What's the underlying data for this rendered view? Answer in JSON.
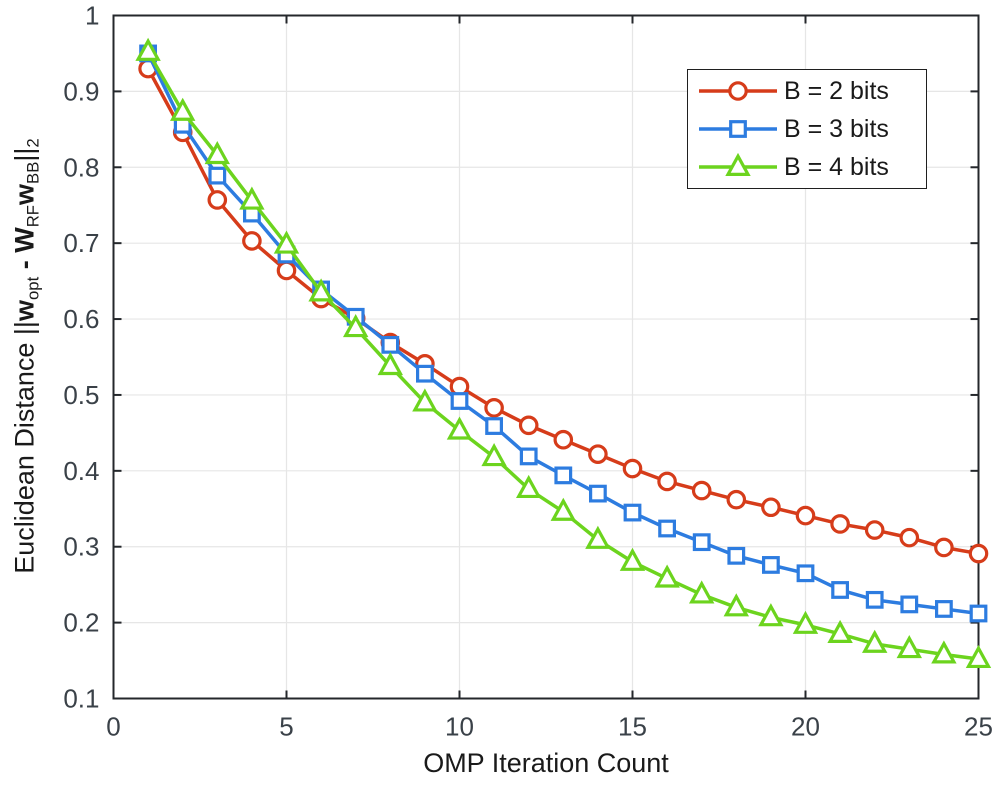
{
  "figure": {
    "background": "#ffffff",
    "axes_color": "#24272b",
    "grid_color": "#e6e6e6",
    "tick_label_color": "#3a4148",
    "label_color": "#1a1a1a"
  },
  "chart_data": {
    "type": "line",
    "title": "",
    "xlabel": "OMP Iteration Count",
    "ylabel": "Euclidean Distance ||w_opt - W_RF w_BB||_2",
    "ylabel_segments": [
      {
        "text": "Euclidean Distance ||"
      },
      {
        "text": "w",
        "bold": true
      },
      {
        "text": "opt",
        "sub": true
      },
      {
        "text": " - ",
        "bold": true
      },
      {
        "text": "W",
        "bold": true
      },
      {
        "text": "RF",
        "sub": true
      },
      {
        "text": "w",
        "bold": true
      },
      {
        "text": "BB",
        "sub": true
      },
      {
        "text": "||"
      },
      {
        "text": "2",
        "sub": true
      }
    ],
    "xlim": [
      0,
      25
    ],
    "ylim": [
      0.1,
      1.0
    ],
    "xticks": [
      0,
      5,
      10,
      15,
      20,
      25
    ],
    "xtick_labels": [
      "0",
      "5",
      "10",
      "15",
      "20",
      "25"
    ],
    "yticks": [
      0.1,
      0.2,
      0.3,
      0.4,
      0.5,
      0.6,
      0.7,
      0.8,
      0.9,
      1.0
    ],
    "ytick_labels": [
      "0.1",
      "0.2",
      "0.3",
      "0.4",
      "0.5",
      "0.6",
      "0.7",
      "0.8",
      "0.9",
      "1"
    ],
    "grid": true,
    "legend_position": "upper right",
    "x": [
      1,
      2,
      3,
      4,
      5,
      6,
      7,
      8,
      9,
      10,
      11,
      12,
      13,
      14,
      15,
      16,
      17,
      18,
      19,
      20,
      21,
      22,
      23,
      24,
      25
    ],
    "series": [
      {
        "name": "B = 2 bits",
        "color": "#d63c1a",
        "marker": "circle",
        "values": [
          0.93,
          0.846,
          0.757,
          0.703,
          0.664,
          0.627,
          0.601,
          0.569,
          0.541,
          0.511,
          0.483,
          0.46,
          0.441,
          0.422,
          0.403,
          0.386,
          0.374,
          0.362,
          0.352,
          0.341,
          0.33,
          0.322,
          0.312,
          0.299,
          0.291
        ]
      },
      {
        "name": "B = 3 bits",
        "color": "#2d7ce0",
        "marker": "square",
        "values": [
          0.95,
          0.856,
          0.789,
          0.739,
          0.685,
          0.639,
          0.603,
          0.566,
          0.528,
          0.492,
          0.459,
          0.419,
          0.394,
          0.37,
          0.345,
          0.324,
          0.306,
          0.288,
          0.276,
          0.265,
          0.243,
          0.23,
          0.224,
          0.218,
          0.212
        ]
      },
      {
        "name": "B = 4 bits",
        "color": "#6cd41e",
        "marker": "triangle",
        "values": [
          0.952,
          0.873,
          0.816,
          0.756,
          0.698,
          0.635,
          0.588,
          0.538,
          0.49,
          0.453,
          0.418,
          0.376,
          0.346,
          0.309,
          0.28,
          0.258,
          0.237,
          0.22,
          0.207,
          0.197,
          0.185,
          0.172,
          0.165,
          0.158,
          0.152
        ]
      }
    ]
  }
}
